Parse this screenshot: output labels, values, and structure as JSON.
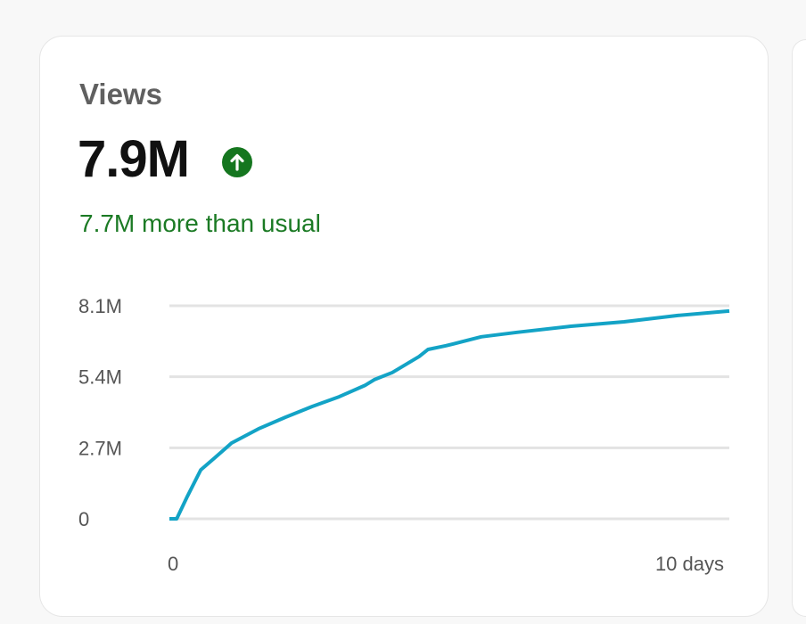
{
  "card": {
    "title": "Views",
    "value": "7.9M",
    "trend_icon": "arrow-up-circle-icon",
    "comparison": "7.7M more than usual"
  },
  "colors": {
    "line": "#13a3c6",
    "positive": "#15761f",
    "grid": "#e3e3e3"
  },
  "chart_data": {
    "type": "line",
    "title": "Views",
    "xlabel": "",
    "ylabel": "",
    "x_tick_labels": [
      "0",
      "10 days"
    ],
    "y_tick_labels": [
      "0",
      "2.7M",
      "5.4M",
      "8.1M"
    ],
    "y_ticks": [
      0,
      2.7,
      5.4,
      8.1
    ],
    "xlim": [
      0,
      10
    ],
    "ylim": [
      0,
      8.1
    ],
    "grid": true,
    "series": [
      {
        "name": "Views (M)",
        "x": [
          0,
          0.13,
          0.32,
          0.56,
          0.8,
          1.11,
          1.59,
          2.07,
          2.55,
          3.03,
          3.5,
          3.66,
          3.98,
          4.46,
          4.62,
          4.94,
          5.57,
          6.21,
          7.17,
          8.12,
          9.08,
          10
        ],
        "y": [
          0,
          0,
          0.85,
          1.86,
          2.3,
          2.88,
          3.42,
          3.86,
          4.27,
          4.64,
          5.08,
          5.29,
          5.56,
          6.17,
          6.44,
          6.58,
          6.92,
          7.09,
          7.32,
          7.49,
          7.73,
          7.9
        ]
      }
    ]
  }
}
